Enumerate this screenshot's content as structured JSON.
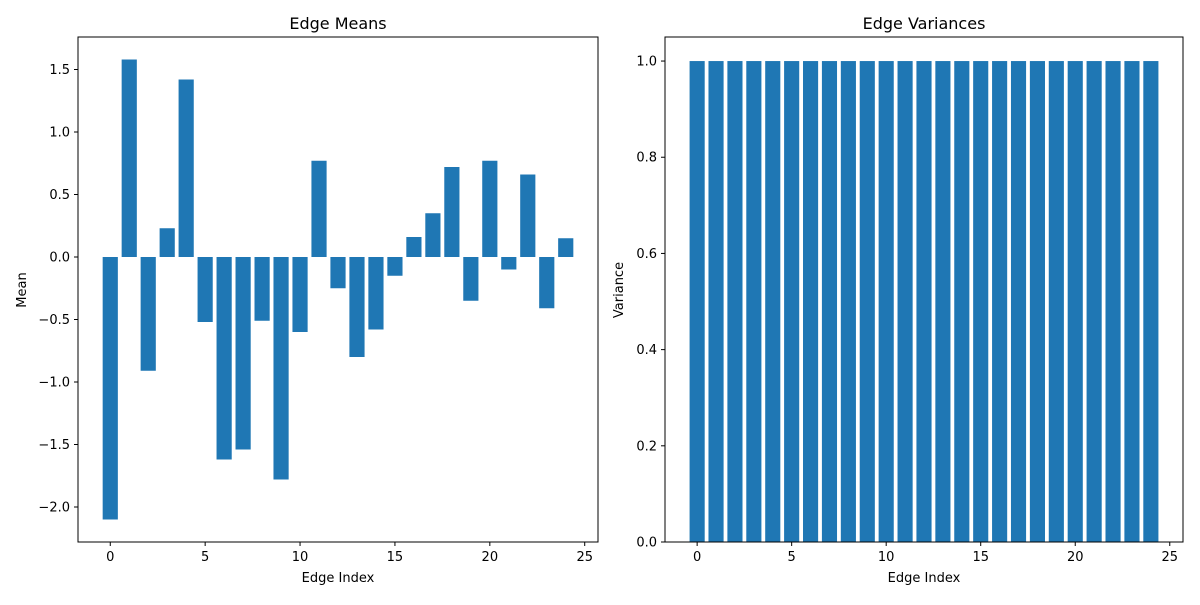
{
  "chart_data": [
    {
      "type": "bar",
      "title": "Edge Means",
      "xlabel": "Edge Index",
      "ylabel": "Mean",
      "x": [
        0,
        1,
        2,
        3,
        4,
        5,
        6,
        7,
        8,
        9,
        10,
        11,
        12,
        13,
        14,
        15,
        16,
        17,
        18,
        19,
        20,
        21,
        22,
        23,
        24
      ],
      "values": [
        -2.1,
        1.58,
        -0.91,
        0.23,
        1.42,
        -0.52,
        -1.62,
        -1.54,
        -0.51,
        -1.78,
        -0.6,
        0.77,
        -0.25,
        -0.8,
        -0.58,
        -0.15,
        0.16,
        0.35,
        0.72,
        -0.35,
        0.77,
        -0.1,
        0.66,
        -0.41,
        0.15
      ],
      "xlim": [
        -1.7,
        25.7
      ],
      "ylim": [
        -2.28,
        1.76
      ],
      "xticks": [
        0,
        5,
        10,
        15,
        20,
        25
      ],
      "xtick_labels": [
        "0",
        "5",
        "10",
        "15",
        "20",
        "25"
      ],
      "yticks": [
        -2.0,
        -1.5,
        -1.0,
        -0.5,
        0.0,
        0.5,
        1.0,
        1.5
      ],
      "ytick_labels": [
        "−2.0",
        "−1.5",
        "−1.0",
        "−0.5",
        "0.0",
        "0.5",
        "1.0",
        "1.5"
      ],
      "grid": false,
      "color": "#1f77b4"
    },
    {
      "type": "bar",
      "title": "Edge Variances",
      "xlabel": "Edge Index",
      "ylabel": "Variance",
      "x": [
        0,
        1,
        2,
        3,
        4,
        5,
        6,
        7,
        8,
        9,
        10,
        11,
        12,
        13,
        14,
        15,
        16,
        17,
        18,
        19,
        20,
        21,
        22,
        23,
        24
      ],
      "values": [
        1.0,
        1.0,
        1.0,
        1.0,
        1.0,
        1.0,
        1.0,
        1.0,
        1.0,
        1.0,
        1.0,
        1.0,
        1.0,
        1.0,
        1.0,
        1.0,
        1.0,
        1.0,
        1.0,
        1.0,
        1.0,
        1.0,
        1.0,
        1.0,
        1.0
      ],
      "xlim": [
        -1.7,
        25.7
      ],
      "ylim": [
        0.0,
        1.05
      ],
      "xticks": [
        0,
        5,
        10,
        15,
        20,
        25
      ],
      "xtick_labels": [
        "0",
        "5",
        "10",
        "15",
        "20",
        "25"
      ],
      "yticks": [
        0.0,
        0.2,
        0.4,
        0.6,
        0.8,
        1.0
      ],
      "ytick_labels": [
        "0.0",
        "0.2",
        "0.4",
        "0.6",
        "0.8",
        "1.0"
      ],
      "grid": false,
      "color": "#1f77b4"
    }
  ]
}
